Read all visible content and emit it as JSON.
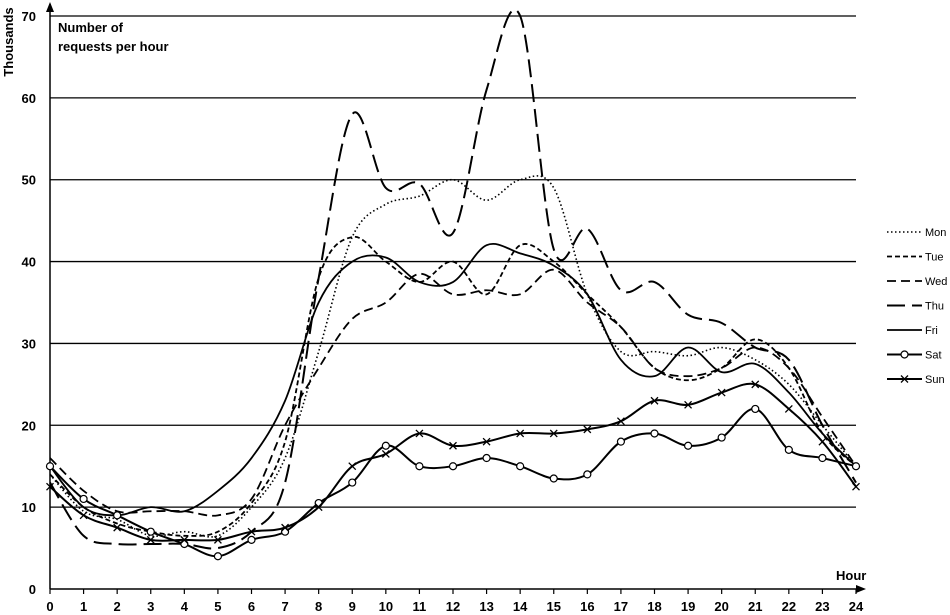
{
  "chart_data": {
    "type": "line",
    "title_lines": [
      "Number of",
      "requests per hour"
    ],
    "ylabel": "Thousands",
    "xlabel": "Hour",
    "x": [
      0,
      1,
      2,
      3,
      4,
      5,
      6,
      7,
      8,
      9,
      10,
      11,
      12,
      13,
      14,
      15,
      16,
      17,
      18,
      19,
      20,
      21,
      22,
      23,
      24
    ],
    "xlim": [
      0,
      24
    ],
    "ylim": [
      0,
      70
    ],
    "y_ticks": [
      0,
      10,
      20,
      30,
      40,
      50,
      60,
      70
    ],
    "grid": true,
    "legend_position": "right",
    "series": [
      {
        "name": "Mon",
        "style": "dotted",
        "values": [
          14,
          9.5,
          8.5,
          6.5,
          7,
          6.5,
          10,
          16,
          29,
          43,
          47,
          48,
          50,
          47.5,
          50,
          49,
          36,
          29,
          29,
          28.5,
          29.5,
          28,
          25,
          20,
          15
        ]
      },
      {
        "name": "Tue",
        "style": "short-dash",
        "values": [
          14,
          10,
          8,
          7,
          6.5,
          7,
          10.5,
          18,
          38,
          43,
          40,
          37.5,
          40,
          36,
          42,
          40,
          36,
          32,
          27,
          25.5,
          27,
          30.5,
          27,
          19,
          15
        ]
      },
      {
        "name": "Wed",
        "style": "medium-dash",
        "values": [
          16,
          12,
          9.5,
          9.5,
          9.5,
          9,
          11,
          20,
          27,
          33,
          35,
          38.5,
          36,
          36.5,
          36,
          39,
          35,
          32,
          27,
          26,
          27,
          29.5,
          27,
          21,
          15
        ]
      },
      {
        "name": "Thu",
        "style": "long-dash",
        "values": [
          13,
          6.5,
          5.5,
          5.5,
          5.5,
          5,
          7,
          13,
          38,
          58,
          49,
          49.5,
          43.5,
          61,
          70,
          41.5,
          44,
          36.5,
          37.5,
          33.5,
          32.5,
          29.5,
          28,
          20,
          13
        ]
      },
      {
        "name": "Fri",
        "style": "solid",
        "values": [
          15,
          10,
          9,
          10,
          9.5,
          12,
          16,
          23,
          35,
          40,
          40.5,
          37.5,
          37.5,
          42,
          41,
          39.5,
          36,
          28,
          26,
          29.5,
          26.5,
          27.5,
          24,
          19,
          15
        ]
      },
      {
        "name": "Sat",
        "style": "circle",
        "values": [
          15,
          11,
          9,
          7,
          5.5,
          4,
          6,
          7,
          10.5,
          13,
          17.5,
          15,
          15,
          16,
          15,
          13.5,
          14,
          18,
          19,
          17.5,
          18.5,
          22,
          17,
          16,
          15
        ]
      },
      {
        "name": "Sun",
        "style": "cross",
        "values": [
          12.5,
          9,
          7.5,
          6,
          6,
          6,
          7,
          7.5,
          10,
          15,
          16.5,
          19,
          17.5,
          18,
          19,
          19,
          19.5,
          20.5,
          23,
          22.5,
          24,
          25,
          22,
          18,
          12.5
        ]
      }
    ]
  }
}
